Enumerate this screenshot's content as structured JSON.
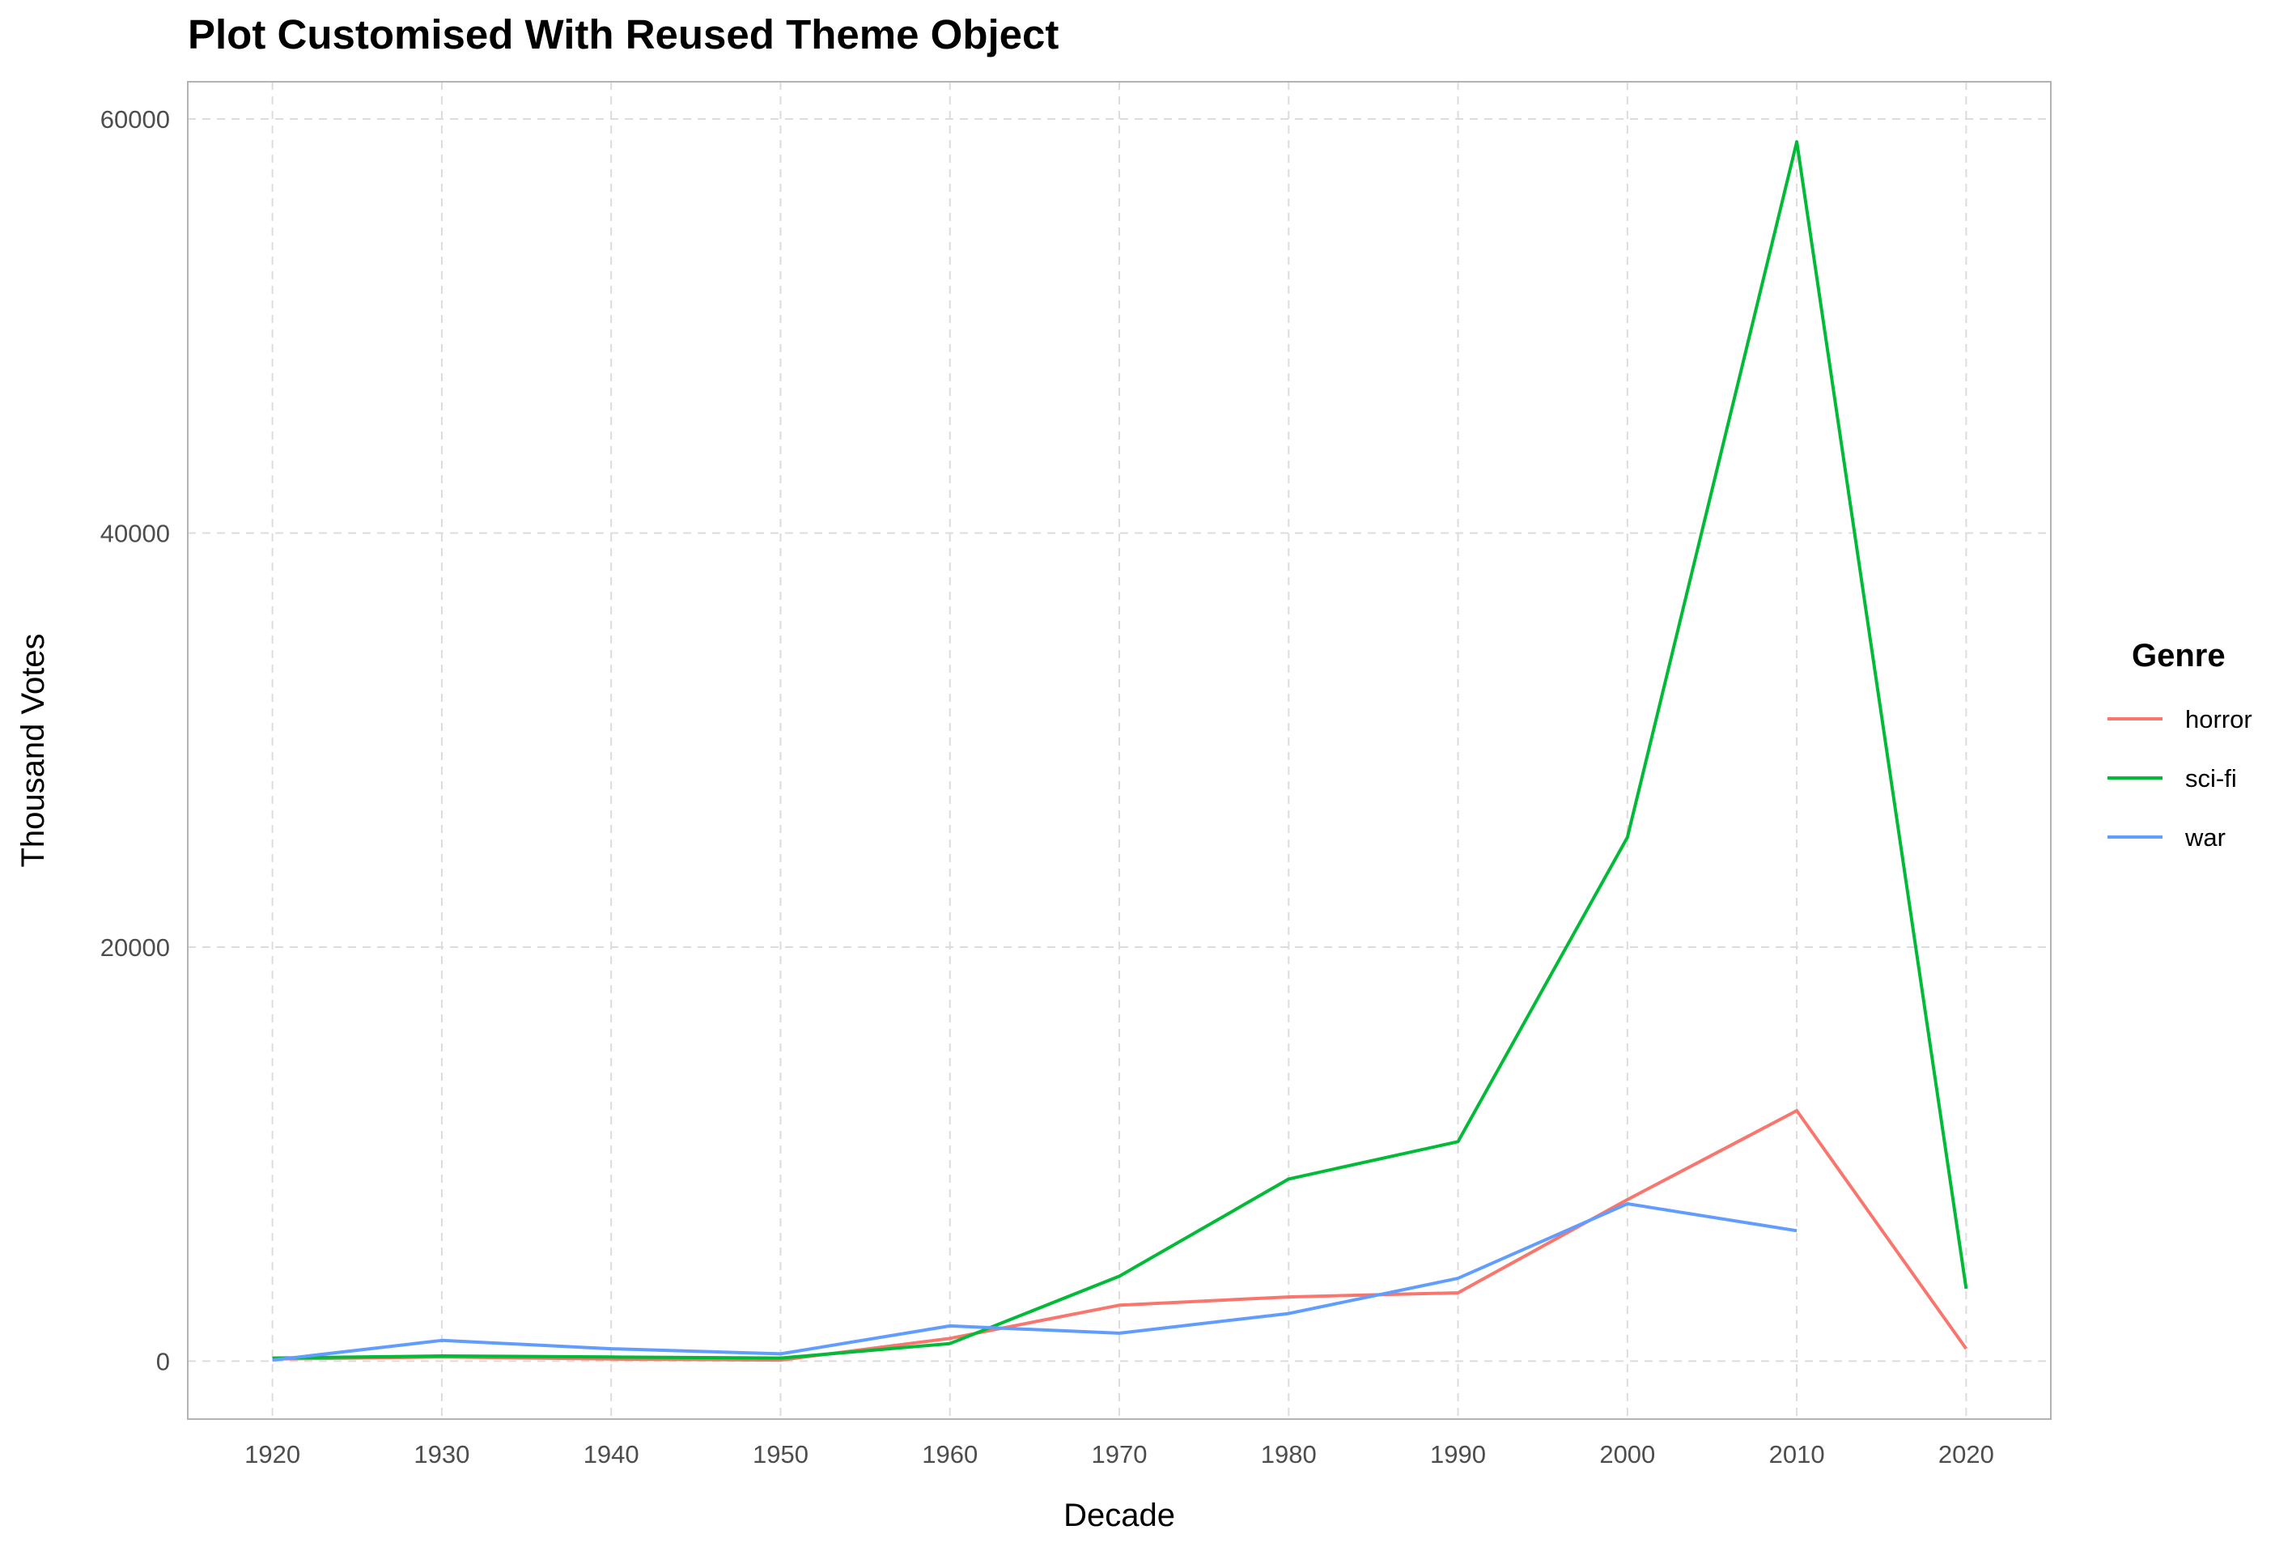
{
  "colors": {
    "horror": "#F8766D",
    "sci-fi": "#00BA38",
    "war": "#619CFF",
    "panel_border": "#b3b3b3",
    "grid": "#dcdcdc"
  },
  "chart_data": {
    "type": "line",
    "title": "Plot Customised With Reused Theme Object",
    "xlabel": "Decade",
    "ylabel": "Thousand Votes",
    "x": [
      1920,
      1930,
      1940,
      1950,
      1960,
      1970,
      1980,
      1990,
      2000,
      2010,
      2020
    ],
    "xlim": [
      1915,
      2025
    ],
    "ylim": [
      -2800,
      61800
    ],
    "xticks": [
      "1920",
      "1930",
      "1940",
      "1950",
      "1960",
      "1970",
      "1980",
      "1990",
      "2000",
      "2010",
      "2020"
    ],
    "yticks": [
      "0",
      "20000",
      "40000",
      "60000"
    ],
    "grid": "on (dashed)",
    "legend": {
      "title": "Genre",
      "position": "right"
    },
    "series": [
      {
        "name": "horror",
        "color": "#F8766D",
        "values": [
          100,
          200,
          100,
          50,
          1100,
          2700,
          3100,
          3300,
          7800,
          12100,
          600
        ]
      },
      {
        "name": "sci-fi",
        "color": "#00BA38",
        "values": [
          150,
          250,
          200,
          150,
          850,
          4100,
          8800,
          10600,
          25300,
          58900,
          3500
        ]
      },
      {
        "name": "war",
        "color": "#619CFF",
        "values": [
          50,
          1000,
          600,
          350,
          1700,
          1350,
          2300,
          4000,
          7600,
          6300,
          null
        ]
      }
    ]
  }
}
